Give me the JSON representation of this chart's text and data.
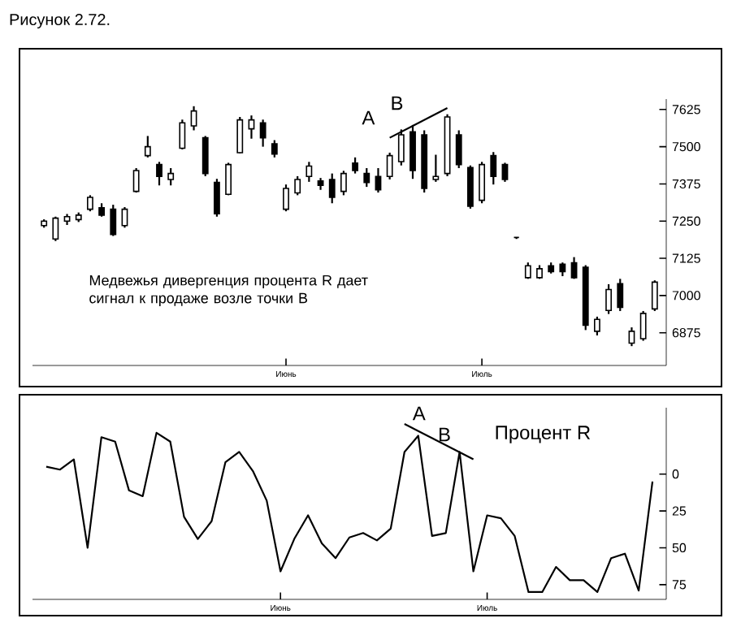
{
  "chart_data": [
    {
      "type": "candlestick",
      "title": "Рисунок 2.72.",
      "categories": [
        null,
        null,
        null,
        null,
        null,
        null,
        null,
        null,
        null,
        null,
        null,
        null,
        null,
        null,
        null,
        null,
        null,
        null,
        null,
        null,
        null,
        "Июнь",
        null,
        null,
        null,
        null,
        null,
        null,
        null,
        null,
        null,
        null,
        null,
        null,
        null,
        null,
        null,
        null,
        "Июль",
        null,
        null,
        null,
        null,
        null,
        null,
        null,
        null,
        null,
        null,
        null,
        null,
        null,
        null,
        null
      ],
      "ohlc": [
        [
          7235,
          7256,
          7228,
          7250
        ],
        [
          7190,
          7265,
          7183,
          7260
        ],
        [
          7250,
          7274,
          7237,
          7265
        ],
        [
          7255,
          7279,
          7247,
          7270
        ],
        [
          7290,
          7337,
          7283,
          7330
        ],
        [
          7295,
          7310,
          7265,
          7270
        ],
        [
          7290,
          7305,
          7200,
          7205
        ],
        [
          7235,
          7297,
          7228,
          7290
        ],
        [
          7350,
          7428,
          7346,
          7420
        ],
        [
          7470,
          7536,
          7464,
          7500
        ],
        [
          7440,
          7449,
          7370,
          7400
        ],
        [
          7390,
          7428,
          7370,
          7410
        ],
        [
          7495,
          7591,
          7491,
          7580
        ],
        [
          7570,
          7636,
          7555,
          7620
        ],
        [
          7530,
          7536,
          7401,
          7410
        ],
        [
          7380,
          7392,
          7265,
          7275
        ],
        [
          7340,
          7446,
          7337,
          7440
        ],
        [
          7480,
          7600,
          7478,
          7590
        ],
        [
          7560,
          7605,
          7527,
          7590
        ],
        [
          7580,
          7591,
          7500,
          7530
        ],
        [
          7510,
          7522,
          7464,
          7475
        ],
        [
          7290,
          7373,
          7283,
          7360
        ],
        [
          7345,
          7401,
          7337,
          7390
        ],
        [
          7400,
          7449,
          7382,
          7435
        ],
        [
          7385,
          7395,
          7355,
          7370
        ],
        [
          7390,
          7410,
          7310,
          7330
        ],
        [
          7350,
          7419,
          7337,
          7410
        ],
        [
          7445,
          7464,
          7410,
          7420
        ],
        [
          7410,
          7428,
          7365,
          7380
        ],
        [
          7400,
          7428,
          7346,
          7355
        ],
        [
          7400,
          7480,
          7390,
          7470
        ],
        [
          7450,
          7558,
          7437,
          7540
        ],
        [
          7550,
          7573,
          7392,
          7420
        ],
        [
          7540,
          7555,
          7346,
          7360
        ],
        [
          7390,
          7473,
          7382,
          7400
        ],
        [
          7410,
          7609,
          7401,
          7600
        ],
        [
          7540,
          7555,
          7428,
          7440
        ],
        [
          7430,
          7437,
          7292,
          7300
        ],
        [
          7320,
          7449,
          7310,
          7440
        ],
        [
          7470,
          7482,
          7373,
          7400
        ],
        [
          7440,
          7446,
          7382,
          7390
        ],
        [
          7195,
          7196,
          7190,
          7195
        ],
        [
          7060,
          7111,
          7056,
          7100
        ],
        [
          7060,
          7102,
          7056,
          7090
        ],
        [
          7100,
          7111,
          7074,
          7080
        ],
        [
          7105,
          7111,
          7065,
          7080
        ],
        [
          7110,
          7129,
          7056,
          7060
        ],
        [
          7095,
          7102,
          6884,
          6900
        ],
        [
          6880,
          6929,
          6866,
          6920
        ],
        [
          6950,
          7038,
          6938,
          7020
        ],
        [
          7040,
          7056,
          6948,
          6960
        ],
        [
          6840,
          6893,
          6830,
          6880
        ],
        [
          6855,
          6948,
          6848,
          6940
        ],
        [
          6955,
          7051,
          6948,
          7045
        ]
      ],
      "color": "#000000",
      "series": [
        {
          "type": "line",
          "color": "#000000",
          "values": [
            null,
            null,
            null,
            null,
            null,
            null,
            null,
            null,
            null,
            null,
            null,
            null,
            null,
            null,
            null,
            null,
            null,
            null,
            null,
            null,
            null,
            null,
            null,
            null,
            null,
            null,
            null,
            null,
            null,
            null,
            7530,
            null,
            null,
            null,
            null,
            7630,
            null,
            null,
            null,
            null,
            null,
            null,
            null,
            null,
            null,
            null,
            null,
            null,
            null,
            null,
            null,
            null,
            null,
            null
          ]
        }
      ],
      "ylim": [
        6765,
        7660
      ],
      "yticks": [
        6875,
        7000,
        7125,
        7250,
        7375,
        7500,
        7625
      ],
      "annotations": [
        "A",
        "B",
        "Медвежья дивергенция процента R дает сигнал к продаже возле точки B"
      ]
    },
    {
      "type": "line",
      "categories": [
        null,
        null,
        null,
        null,
        null,
        null,
        null,
        null,
        null,
        null,
        null,
        null,
        null,
        null,
        null,
        null,
        null,
        "Июнь",
        null,
        null,
        null,
        null,
        null,
        null,
        null,
        null,
        null,
        null,
        null,
        null,
        null,
        null,
        "Июль",
        null,
        null,
        null,
        null,
        null,
        null,
        null,
        null,
        null,
        null,
        null,
        null
      ],
      "series": [
        {
          "name": "Процент R",
          "color": "#000000",
          "values": [
            -5,
            -3,
            -10,
            50,
            -25,
            -22,
            11,
            15,
            -28,
            -22,
            29,
            44,
            32,
            -8,
            -15,
            -2,
            18,
            66,
            44,
            28,
            47,
            57,
            43,
            40,
            45,
            37,
            -15,
            -26,
            42,
            40,
            -15,
            66,
            28,
            30,
            42,
            80,
            80,
            63,
            72,
            72,
            80,
            57,
            54,
            79,
            5
          ]
        },
        {
          "type": "line",
          "color": "#000000",
          "values": [
            null,
            null,
            null,
            null,
            null,
            null,
            null,
            null,
            null,
            null,
            null,
            null,
            null,
            null,
            null,
            null,
            null,
            null,
            null,
            null,
            null,
            null,
            null,
            null,
            null,
            null,
            -34,
            null,
            null,
            null,
            null,
            -10,
            null,
            null,
            null,
            null,
            null,
            null,
            null,
            null,
            null,
            null,
            null,
            null,
            null
          ]
        }
      ],
      "ylim": [
        85,
        -45
      ],
      "yticks": [
        0,
        25,
        50,
        75
      ],
      "annotations": [
        "A",
        "B"
      ]
    }
  ]
}
